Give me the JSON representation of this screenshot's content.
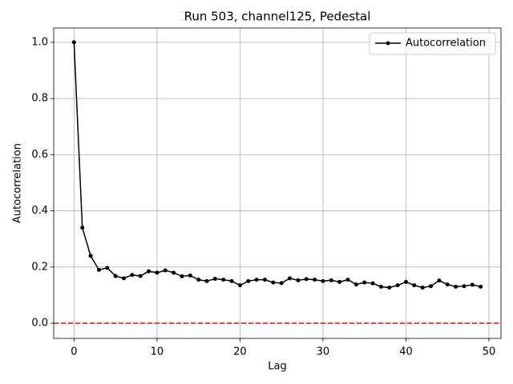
{
  "chart_data": {
    "type": "line",
    "title": "Run 503, channel125, Pedestal",
    "xlabel": "Lag",
    "ylabel": "Autocorrelation",
    "x": [
      0,
      1,
      2,
      3,
      4,
      5,
      6,
      7,
      8,
      9,
      10,
      11,
      12,
      13,
      14,
      15,
      16,
      17,
      18,
      19,
      20,
      21,
      22,
      23,
      24,
      25,
      26,
      27,
      28,
      29,
      30,
      31,
      32,
      33,
      34,
      35,
      36,
      37,
      38,
      39,
      40,
      41,
      42,
      43,
      44,
      45,
      46,
      47,
      48,
      49
    ],
    "series": [
      {
        "name": "Autocorrelation",
        "color": "#000000",
        "values": [
          1.0,
          0.34,
          0.24,
          0.19,
          0.197,
          0.168,
          0.16,
          0.172,
          0.168,
          0.185,
          0.18,
          0.188,
          0.18,
          0.167,
          0.17,
          0.155,
          0.15,
          0.158,
          0.155,
          0.15,
          0.135,
          0.15,
          0.155,
          0.155,
          0.145,
          0.143,
          0.16,
          0.153,
          0.157,
          0.155,
          0.15,
          0.153,
          0.147,
          0.155,
          0.138,
          0.145,
          0.142,
          0.13,
          0.127,
          0.135,
          0.147,
          0.135,
          0.127,
          0.132,
          0.152,
          0.138,
          0.13,
          0.132,
          0.137,
          0.13
        ]
      }
    ],
    "hline": {
      "value": 0,
      "color": "#ff0000"
    },
    "xlim": [
      -2.45,
      51.45
    ],
    "ylim": [
      -0.054,
      1.051
    ],
    "xticks": [
      0,
      10,
      20,
      30,
      40,
      50
    ],
    "yticks": [
      {
        "value": 0,
        "label": "0.0"
      },
      0.2,
      0.4,
      0.6,
      0.8,
      {
        "value": 1,
        "label": "1.0"
      }
    ],
    "grid": true,
    "legend": "upper right"
  }
}
